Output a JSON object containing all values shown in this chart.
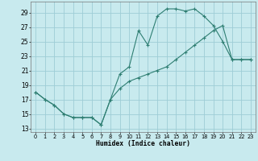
{
  "xlabel": "Humidex (Indice chaleur)",
  "bg_color": "#c8eaee",
  "grid_color": "#9ecdd6",
  "line_color": "#2e7e72",
  "xlim": [
    -0.5,
    23.5
  ],
  "ylim": [
    12.5,
    30.5
  ],
  "yticks": [
    13,
    15,
    17,
    19,
    21,
    23,
    25,
    27,
    29
  ],
  "xticks": [
    0,
    1,
    2,
    3,
    4,
    5,
    6,
    7,
    8,
    9,
    10,
    11,
    12,
    13,
    14,
    15,
    16,
    17,
    18,
    19,
    20,
    21,
    22,
    23
  ],
  "line1_x": [
    0,
    1,
    2,
    3,
    4,
    5,
    6,
    7,
    8,
    9,
    10,
    11,
    12,
    13,
    14,
    15,
    16,
    17,
    18,
    19,
    20,
    21,
    22,
    23
  ],
  "line1_y": [
    18,
    17,
    16.2,
    15.0,
    14.5,
    14.5,
    14.5,
    13.5,
    17.0,
    20.5,
    21.5,
    26.5,
    24.5,
    28.5,
    29.5,
    29.5,
    29.2,
    29.5,
    28.5,
    27.2,
    25.0,
    22.5,
    22.5,
    22.5
  ],
  "line2_x": [
    0,
    1,
    2,
    3,
    4,
    5,
    6,
    7,
    8,
    9,
    10,
    11,
    12,
    13,
    14,
    15,
    16,
    17,
    18,
    19,
    20,
    21,
    22,
    23
  ],
  "line2_y": [
    18,
    17,
    16.2,
    15.0,
    14.5,
    14.5,
    14.5,
    13.5,
    17.0,
    18.5,
    19.5,
    20.0,
    20.5,
    21.0,
    21.5,
    22.5,
    23.5,
    24.5,
    25.5,
    26.5,
    27.2,
    22.5,
    22.5,
    22.5
  ]
}
